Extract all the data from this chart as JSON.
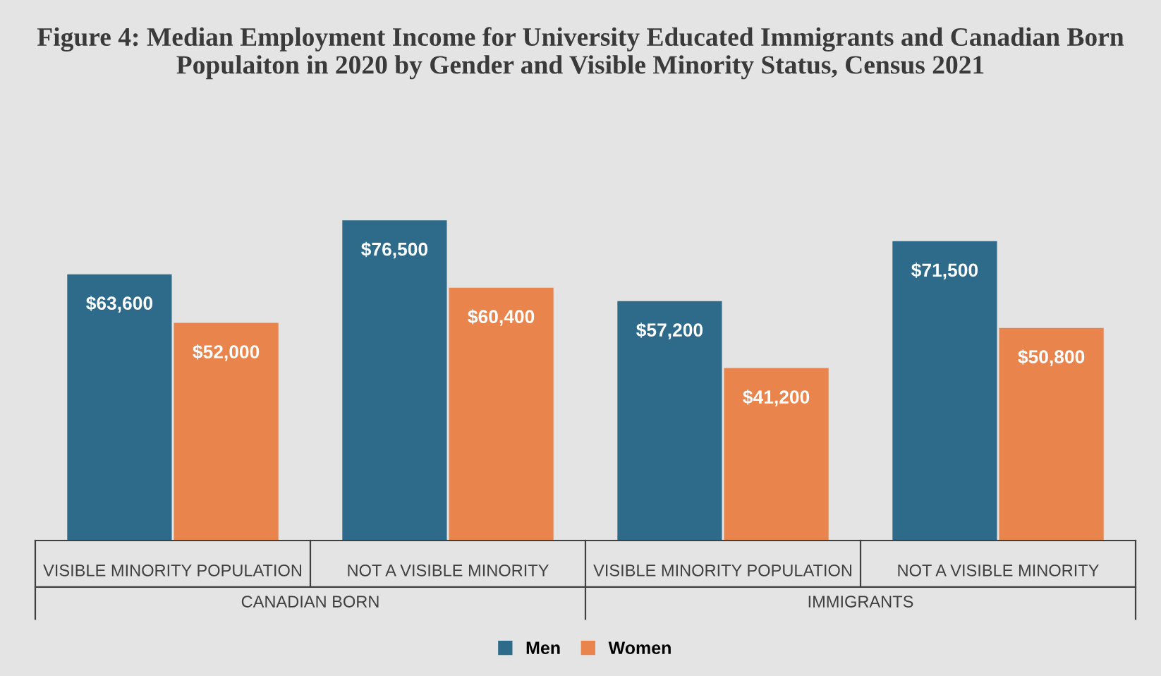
{
  "chart_data": {
    "type": "bar",
    "title": "Figure 4: Median Employment Income for University Educated Immigrants and Canadian Born Populaiton in 2020 by Gender and Visible Minority Status, Census 2021",
    "categories": [
      "VISIBLE MINORITY POPULATION",
      "NOT A VISIBLE MINORITY",
      "VISIBLE MINORITY POPULATION",
      "NOT A VISIBLE MINORITY"
    ],
    "annotations": [
      "CANADIAN BORN",
      "IMMIGRANTS"
    ],
    "series": [
      {
        "name": "Men",
        "color": "#2e6b8a",
        "values": [
          63600,
          76500,
          57200,
          71500
        ],
        "value_labels": [
          "$63,600",
          "$76,500",
          "$57,200",
          "$71,500"
        ]
      },
      {
        "name": "Women",
        "color": "#e8844c",
        "values": [
          52000,
          60400,
          41200,
          50800
        ],
        "value_labels": [
          "$52,000",
          "$60,400",
          "$41,200",
          "$50,800"
        ]
      }
    ],
    "legend": "bottom"
  }
}
